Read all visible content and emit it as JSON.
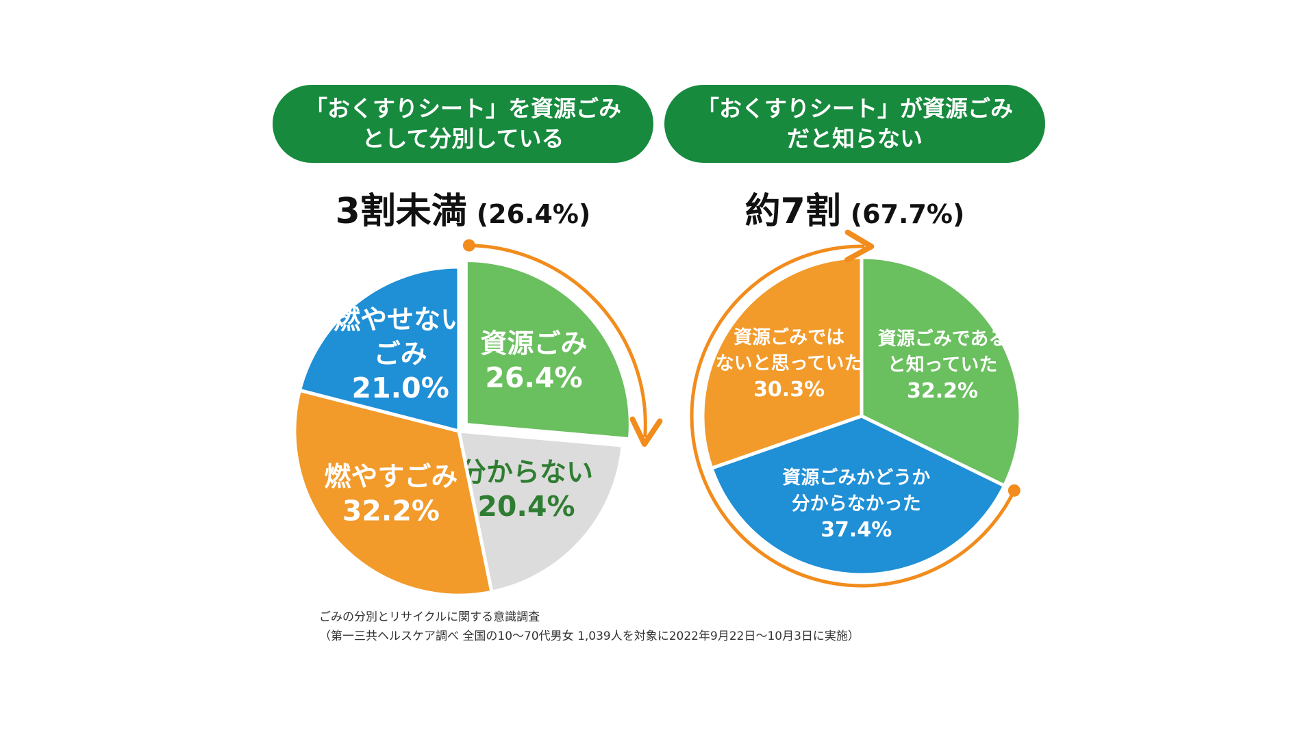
{
  "chart_data": [
    {
      "type": "pie",
      "heading": [
        "「おくすりシート」を資源ごみ",
        "として分別している"
      ],
      "headline": "3割未満",
      "headline_value": "(26.4%)",
      "slices": [
        {
          "name": "資源ごみ",
          "value": 26.4,
          "label_lines": [
            "資源ごみ"
          ],
          "value_label": "26.4%",
          "color": "#6abf5e",
          "text_color": "#ffffff"
        },
        {
          "name": "分からない",
          "value": 20.4,
          "label_lines": [
            "分からない"
          ],
          "value_label": "20.4%",
          "color": "#dcdcdc",
          "text_color": "#2f7d32"
        },
        {
          "name": "燃やすごみ",
          "value": 32.2,
          "label_lines": [
            "燃やすごみ"
          ],
          "value_label": "32.2%",
          "color": "#f29a2a",
          "text_color": "#ffffff"
        },
        {
          "name": "燃やせないごみ",
          "value": 21.0,
          "label_lines": [
            "燃やせない",
            "ごみ"
          ],
          "value_label": "21.0%",
          "color": "#1f8fd6",
          "text_color": "#ffffff"
        }
      ],
      "highlight_slice": 0
    },
    {
      "type": "pie",
      "heading": [
        "「おくすりシート」が資源ごみ",
        "だと知らない"
      ],
      "headline": "約7割",
      "headline_value": "(67.7%)",
      "slices": [
        {
          "name": "資源ごみであると知っていた",
          "value": 32.2,
          "label_lines": [
            "資源ごみである",
            "と知っていた"
          ],
          "value_label": "32.2%",
          "color": "#6abf5e",
          "text_color": "#ffffff"
        },
        {
          "name": "資源ごみかどうか分からなかった",
          "value": 37.4,
          "label_lines": [
            "資源ごみかどうか",
            "分からなかった"
          ],
          "value_label": "37.4%",
          "color": "#1f8fd6",
          "text_color": "#ffffff"
        },
        {
          "name": "資源ごみではないと思っていた",
          "value": 30.3,
          "label_lines": [
            "資源ごみでは",
            "ないと思っていた"
          ],
          "value_label": "30.3%",
          "color": "#f29a2a",
          "text_color": "#ffffff"
        }
      ],
      "highlight_slices": [
        1,
        2
      ]
    }
  ],
  "footnote": {
    "line1": "ごみの分別とリサイクルに関する意識調査",
    "line2": "（第一三共ヘルスケア調べ 全国の10～70代男女 1,039人を対象に2022年9月22日～10月3日に実施）"
  },
  "colors": {
    "banner": "#178a3e",
    "arrow": "#f28c1c"
  }
}
